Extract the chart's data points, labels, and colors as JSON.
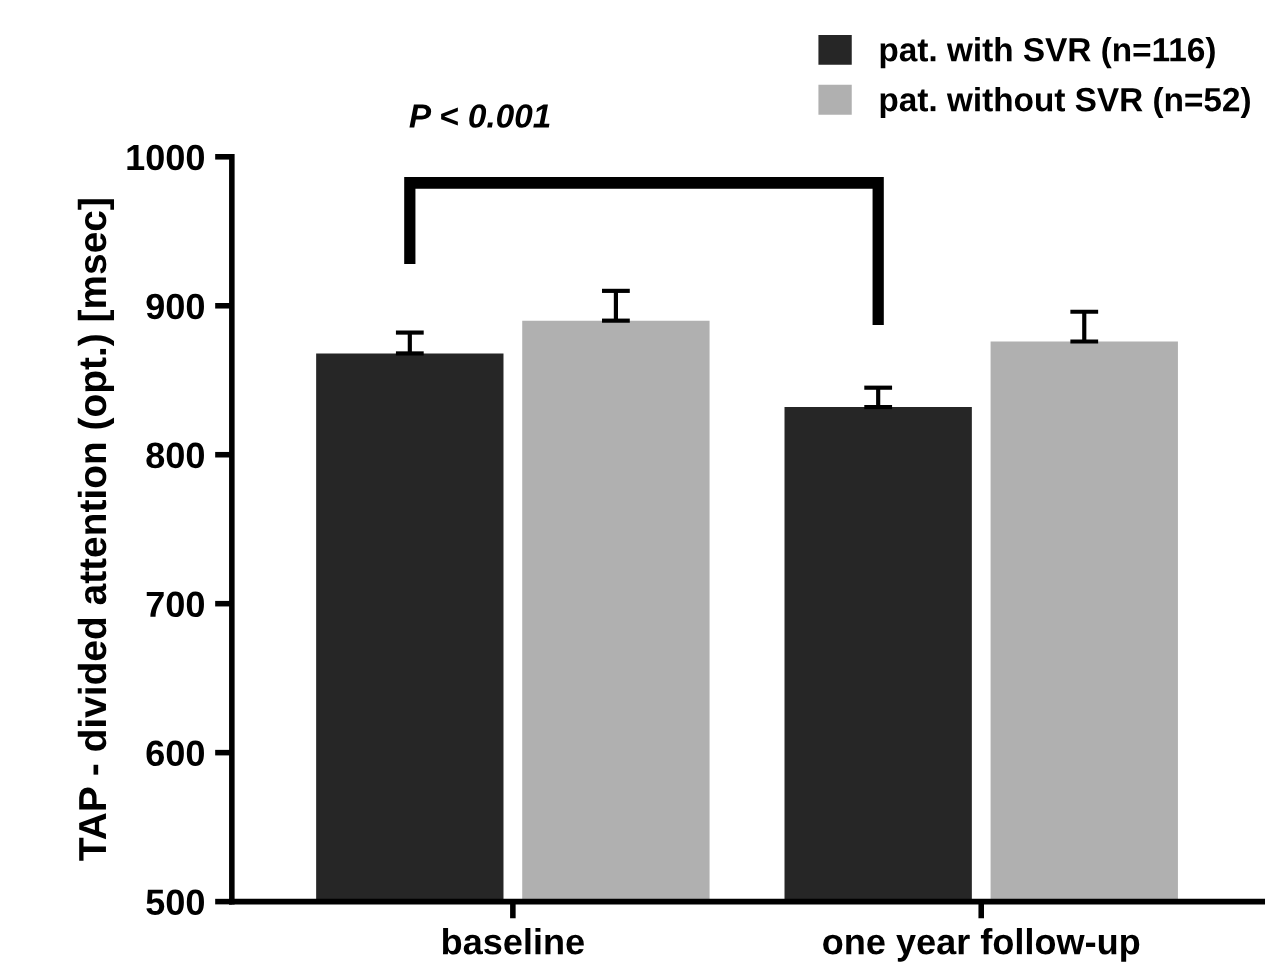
{
  "chart_data": {
    "type": "bar",
    "ylabel": "TAP - divided attention (opt.) [msec]",
    "categories": [
      "baseline",
      "one year follow-up"
    ],
    "series": [
      {
        "name": "pat. with SVR (n=116)",
        "color": "#262626",
        "values": [
          868,
          832
        ],
        "errors": [
          14,
          13
        ]
      },
      {
        "name": "pat. without SVR (n=52)",
        "color": "#b0b0b0",
        "values": [
          890,
          876
        ],
        "errors": [
          20,
          20
        ]
      }
    ],
    "ylim": [
      500,
      1000
    ],
    "yticks": [
      500,
      600,
      700,
      800,
      900,
      1000
    ],
    "grid": false,
    "legend": "top right",
    "annotations": [
      "P < 0.001"
    ]
  }
}
